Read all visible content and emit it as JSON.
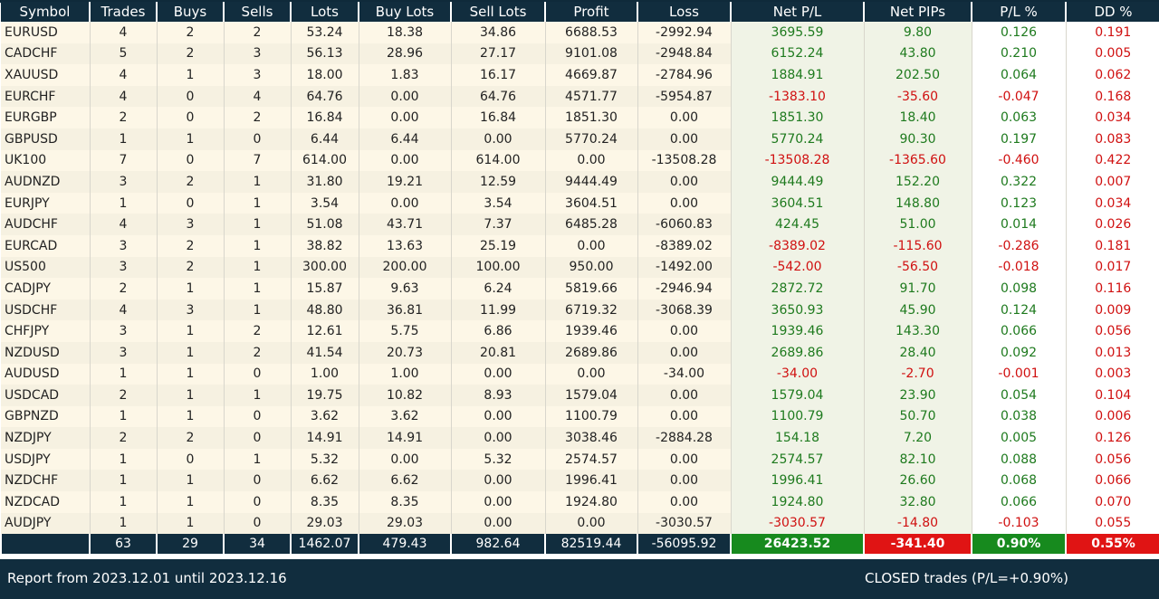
{
  "columns": [
    "Symbol",
    "Trades",
    "Buys",
    "Sells",
    "Lots",
    "Buy Lots",
    "Sell Lots",
    "Profit",
    "Loss",
    "Net P/L",
    "Net PIPs",
    "P/L %",
    "DD %"
  ],
  "rows": [
    [
      "EURUSD",
      "4",
      "2",
      "2",
      "53.24",
      "18.38",
      "34.86",
      "6688.53",
      "-2992.94",
      "3695.59",
      "9.80",
      "0.126",
      "0.191"
    ],
    [
      "CADCHF",
      "5",
      "2",
      "3",
      "56.13",
      "28.96",
      "27.17",
      "9101.08",
      "-2948.84",
      "6152.24",
      "43.80",
      "0.210",
      "0.005"
    ],
    [
      "XAUUSD",
      "4",
      "1",
      "3",
      "18.00",
      "1.83",
      "16.17",
      "4669.87",
      "-2784.96",
      "1884.91",
      "202.50",
      "0.064",
      "0.062"
    ],
    [
      "EURCHF",
      "4",
      "0",
      "4",
      "64.76",
      "0.00",
      "64.76",
      "4571.77",
      "-5954.87",
      "-1383.10",
      "-35.60",
      "-0.047",
      "0.168"
    ],
    [
      "EURGBP",
      "2",
      "0",
      "2",
      "16.84",
      "0.00",
      "16.84",
      "1851.30",
      "0.00",
      "1851.30",
      "18.40",
      "0.063",
      "0.034"
    ],
    [
      "GBPUSD",
      "1",
      "1",
      "0",
      "6.44",
      "6.44",
      "0.00",
      "5770.24",
      "0.00",
      "5770.24",
      "90.30",
      "0.197",
      "0.083"
    ],
    [
      "UK100",
      "7",
      "0",
      "7",
      "614.00",
      "0.00",
      "614.00",
      "0.00",
      "-13508.28",
      "-13508.28",
      "-1365.60",
      "-0.460",
      "0.422"
    ],
    [
      "AUDNZD",
      "3",
      "2",
      "1",
      "31.80",
      "19.21",
      "12.59",
      "9444.49",
      "0.00",
      "9444.49",
      "152.20",
      "0.322",
      "0.007"
    ],
    [
      "EURJPY",
      "1",
      "0",
      "1",
      "3.54",
      "0.00",
      "3.54",
      "3604.51",
      "0.00",
      "3604.51",
      "148.80",
      "0.123",
      "0.034"
    ],
    [
      "AUDCHF",
      "4",
      "3",
      "1",
      "51.08",
      "43.71",
      "7.37",
      "6485.28",
      "-6060.83",
      "424.45",
      "51.00",
      "0.014",
      "0.026"
    ],
    [
      "EURCAD",
      "3",
      "2",
      "1",
      "38.82",
      "13.63",
      "25.19",
      "0.00",
      "-8389.02",
      "-8389.02",
      "-115.60",
      "-0.286",
      "0.181"
    ],
    [
      "US500",
      "3",
      "2",
      "1",
      "300.00",
      "200.00",
      "100.00",
      "950.00",
      "-1492.00",
      "-542.00",
      "-56.50",
      "-0.018",
      "0.017"
    ],
    [
      "CADJPY",
      "2",
      "1",
      "1",
      "15.87",
      "9.63",
      "6.24",
      "5819.66",
      "-2946.94",
      "2872.72",
      "91.70",
      "0.098",
      "0.116"
    ],
    [
      "USDCHF",
      "4",
      "3",
      "1",
      "48.80",
      "36.81",
      "11.99",
      "6719.32",
      "-3068.39",
      "3650.93",
      "45.90",
      "0.124",
      "0.009"
    ],
    [
      "CHFJPY",
      "3",
      "1",
      "2",
      "12.61",
      "5.75",
      "6.86",
      "1939.46",
      "0.00",
      "1939.46",
      "143.30",
      "0.066",
      "0.056"
    ],
    [
      "NZDUSD",
      "3",
      "1",
      "2",
      "41.54",
      "20.73",
      "20.81",
      "2689.86",
      "0.00",
      "2689.86",
      "28.40",
      "0.092",
      "0.013"
    ],
    [
      "AUDUSD",
      "1",
      "1",
      "0",
      "1.00",
      "1.00",
      "0.00",
      "0.00",
      "-34.00",
      "-34.00",
      "-2.70",
      "-0.001",
      "0.003"
    ],
    [
      "USDCAD",
      "2",
      "1",
      "1",
      "19.75",
      "10.82",
      "8.93",
      "1579.04",
      "0.00",
      "1579.04",
      "23.90",
      "0.054",
      "0.104"
    ],
    [
      "GBPNZD",
      "1",
      "1",
      "0",
      "3.62",
      "3.62",
      "0.00",
      "1100.79",
      "0.00",
      "1100.79",
      "50.70",
      "0.038",
      "0.006"
    ],
    [
      "NZDJPY",
      "2",
      "2",
      "0",
      "14.91",
      "14.91",
      "0.00",
      "3038.46",
      "-2884.28",
      "154.18",
      "7.20",
      "0.005",
      "0.126"
    ],
    [
      "USDJPY",
      "1",
      "0",
      "1",
      "5.32",
      "0.00",
      "5.32",
      "2574.57",
      "0.00",
      "2574.57",
      "82.10",
      "0.088",
      "0.056"
    ],
    [
      "NZDCHF",
      "1",
      "1",
      "0",
      "6.62",
      "6.62",
      "0.00",
      "1996.41",
      "0.00",
      "1996.41",
      "26.60",
      "0.068",
      "0.066"
    ],
    [
      "NZDCAD",
      "1",
      "1",
      "0",
      "8.35",
      "8.35",
      "0.00",
      "1924.80",
      "0.00",
      "1924.80",
      "32.80",
      "0.066",
      "0.070"
    ],
    [
      "AUDJPY",
      "1",
      "1",
      "0",
      "29.03",
      "29.03",
      "0.00",
      "0.00",
      "-3030.57",
      "-3030.57",
      "-14.80",
      "-0.103",
      "0.055"
    ]
  ],
  "totals": {
    "symbol": "",
    "trades": "63",
    "buys": "29",
    "sells": "34",
    "lots": "1462.07",
    "buy_lots": "479.43",
    "sell_lots": "982.64",
    "profit": "82519.44",
    "loss": "-56095.92",
    "net_pl": "26423.52",
    "net_pips": "-341.40",
    "pl_pct": "0.90%",
    "dd_pct": "0.55%"
  },
  "footer": {
    "report_range": "Report from 2023.12.01 until 2023.12.16",
    "closed_summary": "CLOSED trades (P/L=+0.90%)"
  },
  "colors": {
    "header_bg": "#112d3e",
    "positive": "#1e7a1e",
    "negative": "#d01010",
    "total_positive_bg": "#178a1e",
    "total_negative_bg": "#e01414"
  }
}
